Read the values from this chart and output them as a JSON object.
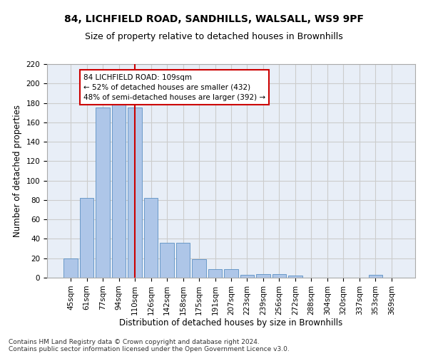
{
  "title1": "84, LICHFIELD ROAD, SANDHILLS, WALSALL, WS9 9PF",
  "title2": "Size of property relative to detached houses in Brownhills",
  "xlabel": "Distribution of detached houses by size in Brownhills",
  "ylabel": "Number of detached properties",
  "categories": [
    "45sqm",
    "61sqm",
    "77sqm",
    "94sqm",
    "110sqm",
    "126sqm",
    "142sqm",
    "158sqm",
    "175sqm",
    "191sqm",
    "207sqm",
    "223sqm",
    "239sqm",
    "256sqm",
    "272sqm",
    "288sqm",
    "304sqm",
    "320sqm",
    "337sqm",
    "353sqm",
    "369sqm"
  ],
  "bar_heights": [
    20,
    82,
    175,
    178,
    175,
    82,
    36,
    36,
    19,
    9,
    9,
    3,
    4,
    4,
    2,
    0,
    0,
    0,
    0,
    3,
    0
  ],
  "bar_color": "#aec6e8",
  "bar_edge_color": "#5a8fc2",
  "vline_x": 4,
  "vline_color": "#cc0000",
  "annotation_text": "84 LICHFIELD ROAD: 109sqm\n← 52% of detached houses are smaller (432)\n48% of semi-detached houses are larger (392) →",
  "annotation_box_color": "#ffffff",
  "annotation_box_edge": "#cc0000",
  "ylim": [
    0,
    220
  ],
  "yticks": [
    0,
    20,
    40,
    60,
    80,
    100,
    120,
    140,
    160,
    180,
    200,
    220
  ],
  "grid_color": "#cccccc",
  "bg_color": "#e8eef7",
  "footnote": "Contains HM Land Registry data © Crown copyright and database right 2024.\nContains public sector information licensed under the Open Government Licence v3.0.",
  "title1_fontsize": 10,
  "title2_fontsize": 9,
  "xlabel_fontsize": 8.5,
  "ylabel_fontsize": 8.5,
  "tick_fontsize": 7.5,
  "annot_fontsize": 7.5,
  "footnote_fontsize": 6.5
}
